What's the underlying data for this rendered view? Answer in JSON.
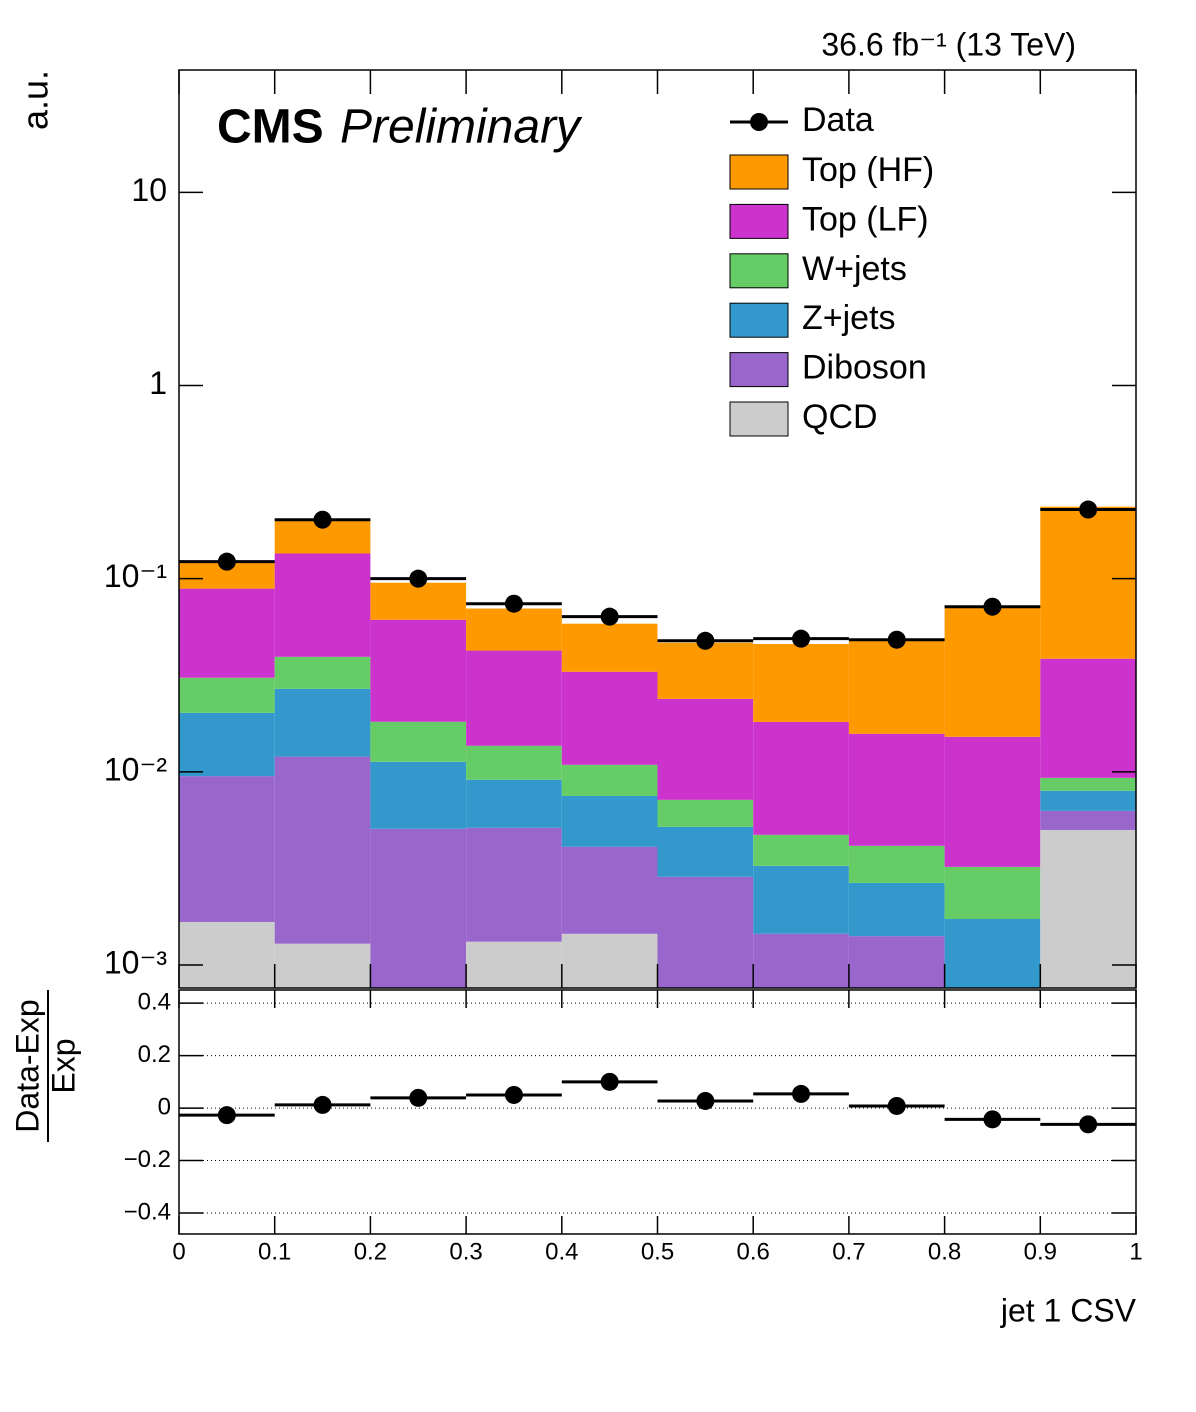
{
  "chart_data": [
    {
      "type": "histogram",
      "stacked": true,
      "log_y": true,
      "lumi_label": "36.6 fb⁻¹ (13 TeV)",
      "experiment": "CMS",
      "status": "Preliminary",
      "ylabel": "a.u.",
      "bins": [
        0,
        0.1,
        0.2,
        0.3,
        0.4,
        0.5,
        0.6,
        0.7,
        0.8,
        0.9,
        1
      ],
      "xlim": [
        0,
        1
      ],
      "series": [
        {
          "name": "QCD",
          "color": "#cccccc",
          "values": [
            0.00167,
            0.00129,
            0,
            0.00132,
            0.00145,
            0,
            0,
            0,
            0,
            0.005
          ]
        },
        {
          "name": "Diboson",
          "color": "#9966cc",
          "values": [
            0.00783,
            0.0107,
            0.00507,
            0.00381,
            0.00264,
            0.00286,
            0.00145,
            0.00141,
            0,
            0.00128
          ]
        },
        {
          "name": "Z+jets",
          "color": "#3399cc",
          "values": [
            0.0107,
            0.0149,
            0.0062,
            0.00397,
            0.00341,
            0.00233,
            0.00181,
            0.00125,
            0.00173,
            0.0017
          ]
        },
        {
          "name": "W+jets",
          "color": "#66cc66",
          "values": [
            0.0105,
            0.0125,
            0.00689,
            0.00454,
            0.00337,
            0.00197,
            0.00146,
            0.00148,
            0.00149,
            0.00133
          ]
        },
        {
          "name": "Top (LF)",
          "color": "#cc33cc",
          "values": [
            0.0581,
            0.0956,
            0.0431,
            0.0288,
            0.0221,
            0.0167,
            0.0134,
            0.0116,
            0.01196,
            0.0292
          ]
        },
        {
          "name": "Top (HF)",
          "color": "#ff9900",
          "values": [
            0.0322,
            0.067,
            0.034,
            0.0276,
            0.0255,
            0.0227,
            0.0278,
            0.032,
            0.0573,
            0.1975
          ]
        }
      ],
      "points": {
        "name": "Data",
        "color": "#000000",
        "values": [
          0.1225,
          0.202,
          0.1,
          0.0742,
          0.0636,
          0.0477,
          0.0489,
          0.0483,
          0.0716,
          0.228
        ]
      },
      "ylim": [
        0.00076,
        43
      ],
      "yticks": [
        {
          "value": 0.001,
          "label": "10⁻³"
        },
        {
          "value": 0.01,
          "label": "10⁻²"
        },
        {
          "value": 0.1,
          "label": "10⁻¹"
        },
        1,
        10
      ],
      "legend": "top-right"
    },
    {
      "type": "scatter",
      "ylabel_top": "Data-Exp",
      "ylabel_bottom": "Exp",
      "xlabel": "jet 1 CSV",
      "color": "#000000",
      "x": [
        0.05,
        0.15,
        0.25,
        0.35,
        0.45,
        0.55,
        0.65,
        0.75,
        0.85,
        0.95
      ],
      "values": [
        -0.027,
        0.012,
        0.039,
        0.05,
        0.1,
        0.027,
        0.054,
        0.008,
        -0.043,
        -0.062
      ],
      "xlim": [
        0,
        1
      ],
      "xticks": [
        0,
        0.1,
        0.2,
        0.3,
        0.4,
        0.5,
        0.6,
        0.7,
        0.8,
        0.9,
        1
      ],
      "ylim": [
        -0.48,
        0.45
      ],
      "yticks": [
        0.4,
        0.2,
        0,
        {
          "value": -0.2,
          "label": "−0.2"
        },
        {
          "value": -0.4,
          "label": "−0.4"
        }
      ],
      "grid": true
    }
  ]
}
